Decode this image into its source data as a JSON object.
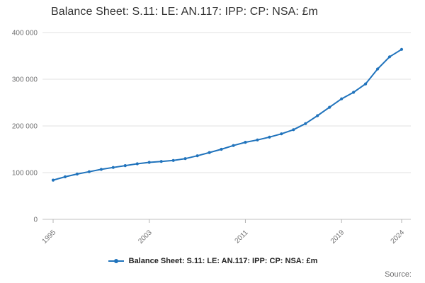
{
  "title": "Balance Sheet: S.11: LE: AN.117: IPP: CP: NSA: £m",
  "legend": {
    "label": "Balance Sheet: S.11: LE: AN.117: IPP: CP: NSA: £m"
  },
  "source_label": "Source:",
  "colors": {
    "line": "#2073bc",
    "grid": "#e0e0e0",
    "axis": "#c0c0c0",
    "tick": "#b3b3b3",
    "axis_text": "#707071",
    "title_text": "#333333"
  },
  "chart_data": {
    "type": "line",
    "title": "Balance Sheet: S.11: LE: AN.117: IPP: CP: NSA: £m",
    "xlabel": "",
    "ylabel": "",
    "x": [
      1995,
      1996,
      1997,
      1998,
      1999,
      2000,
      2001,
      2002,
      2003,
      2004,
      2005,
      2006,
      2007,
      2008,
      2009,
      2010,
      2011,
      2012,
      2013,
      2014,
      2015,
      2016,
      2017,
      2018,
      2019,
      2020,
      2021,
      2022,
      2023,
      2024
    ],
    "series": [
      {
        "name": "Balance Sheet: S.11: LE: AN.117: IPP: CP: NSA: £m",
        "values": [
          84000,
          91000,
          97000,
          102000,
          107000,
          111000,
          115000,
          119000,
          122000,
          124000,
          126000,
          130000,
          136000,
          143000,
          150000,
          158000,
          165000,
          170000,
          176000,
          183000,
          192000,
          205000,
          222000,
          240000,
          258000,
          272000,
          290000,
          322000,
          348000,
          364000
        ]
      }
    ],
    "ylim": [
      0,
      400000
    ],
    "yticks": [
      0,
      100000,
      200000,
      300000,
      400000
    ],
    "ytick_labels": [
      "0",
      "100 000",
      "200 000",
      "300 000",
      "400 000"
    ],
    "xticks": [
      1995,
      2003,
      2011,
      2019,
      2024
    ],
    "grid": true,
    "legend_position": "bottom",
    "marker": "circle"
  }
}
